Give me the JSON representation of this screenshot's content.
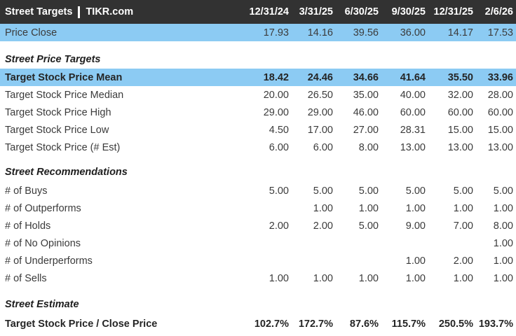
{
  "header": {
    "title_left": "Street Targets",
    "title_right": "TIKR.com",
    "columns": [
      "12/31/24",
      "3/31/25",
      "6/30/25",
      "9/30/25",
      "12/31/25",
      "2/6/26"
    ]
  },
  "price_close": {
    "label": "Price Close",
    "values": [
      "17.93",
      "14.16",
      "39.56",
      "36.00",
      "14.17",
      "17.53"
    ]
  },
  "sections": [
    {
      "title": "Street Price Targets",
      "gap_before": "gap-16",
      "gap_after_title": "gap-3",
      "rows": [
        {
          "label": "Target Stock Price Mean",
          "values": [
            "18.42",
            "24.46",
            "34.66",
            "41.64",
            "35.50",
            "33.96"
          ],
          "highlight": true,
          "bold": true
        },
        {
          "label": "Target Stock Price Median",
          "values": [
            "20.00",
            "26.50",
            "35.00",
            "40.00",
            "32.00",
            "28.00"
          ]
        },
        {
          "label": "Target Stock Price High",
          "values": [
            "29.00",
            "29.00",
            "46.00",
            "60.00",
            "60.00",
            "60.00"
          ]
        },
        {
          "label": "Target Stock Price Low",
          "values": [
            "4.50",
            "17.00",
            "27.00",
            "28.31",
            "15.00",
            "15.00"
          ]
        },
        {
          "label": "Target Stock Price (# Est)",
          "values": [
            "6.00",
            "6.00",
            "8.00",
            "13.00",
            "13.00",
            "13.00"
          ]
        }
      ]
    },
    {
      "title": "Street Recommendations",
      "gap_before": "gap-13",
      "gap_after_title": "gap-4",
      "rows": [
        {
          "label": "# of Buys",
          "values": [
            "5.00",
            "5.00",
            "5.00",
            "5.00",
            "5.00",
            "5.00"
          ]
        },
        {
          "label": "# of Outperforms",
          "values": [
            "",
            "1.00",
            "1.00",
            "1.00",
            "1.00",
            "1.00"
          ]
        },
        {
          "label": "# of Holds",
          "values": [
            "2.00",
            "2.00",
            "5.00",
            "9.00",
            "7.00",
            "8.00"
          ]
        },
        {
          "label": "# of No Opinions",
          "values": [
            "",
            "",
            "",
            "",
            "",
            "1.00"
          ]
        },
        {
          "label": "# of Underperforms",
          "values": [
            "",
            "",
            "",
            "1.00",
            "2.00",
            "1.00"
          ]
        },
        {
          "label": "# of Sells",
          "values": [
            "1.00",
            "1.00",
            "1.00",
            "1.00",
            "1.00",
            "1.00"
          ]
        }
      ]
    },
    {
      "title": "Street Estimate",
      "gap_before": "gap-15",
      "gap_after_title": "gap-5",
      "rows": [
        {
          "label": "Target Stock Price / Close Price",
          "values": [
            "102.7%",
            "172.7%",
            "87.6%",
            "115.7%",
            "250.5%",
            "193.7%"
          ],
          "bold": true
        }
      ]
    }
  ],
  "colors": {
    "header_bg": "#323232",
    "header_text": "#ffffff",
    "highlight_bg": "#8ccbf3",
    "body_text": "#3b3b3b"
  }
}
